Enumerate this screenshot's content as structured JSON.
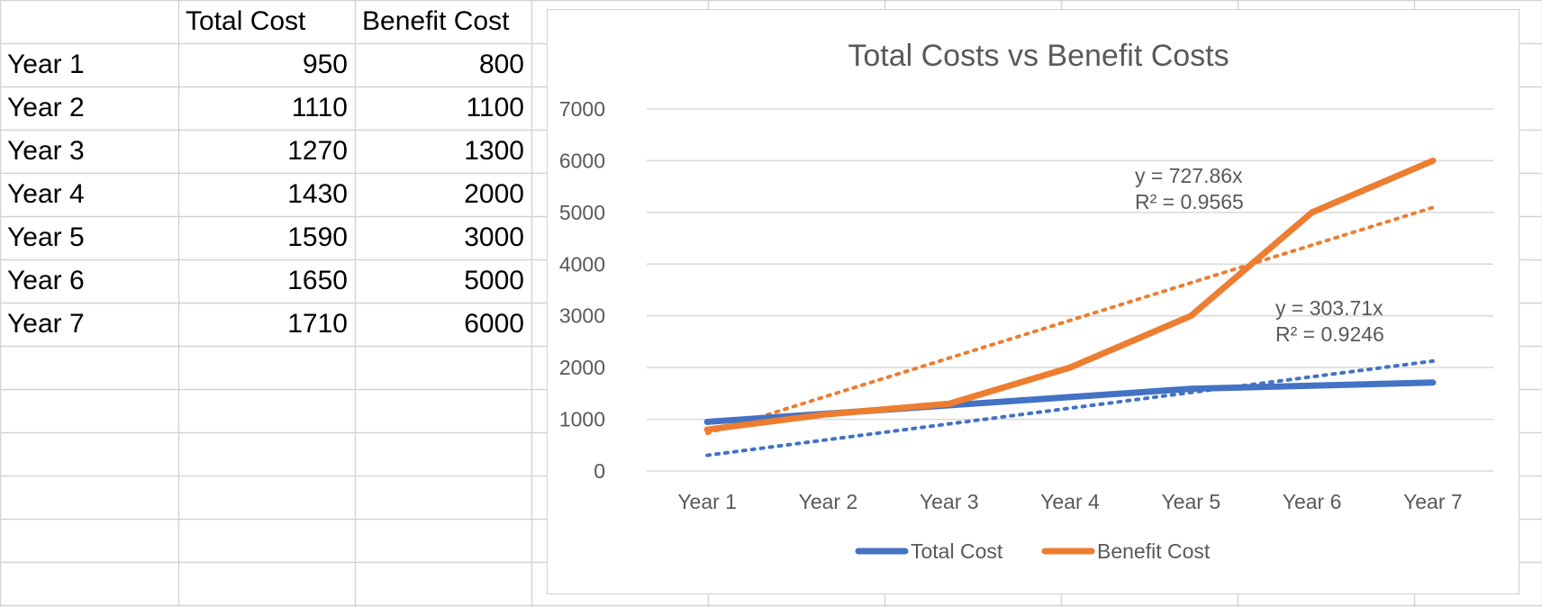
{
  "sheet": {
    "headers": [
      "",
      "Total Cost",
      "Benefit Cost"
    ],
    "rows": [
      {
        "label": "Year 1",
        "total": "950",
        "benefit": "800"
      },
      {
        "label": "Year 2",
        "total": "1110",
        "benefit": "1100"
      },
      {
        "label": "Year 3",
        "total": "1270",
        "benefit": "1300"
      },
      {
        "label": "Year 4",
        "total": "1430",
        "benefit": "2000"
      },
      {
        "label": "Year 5",
        "total": "1590",
        "benefit": "3000"
      },
      {
        "label": "Year 6",
        "total": "1650",
        "benefit": "5000"
      },
      {
        "label": "Year 7",
        "total": "1710",
        "benefit": "6000"
      }
    ]
  },
  "chart_data": {
    "type": "line",
    "title": "Total Costs vs Benefit Costs",
    "xlabel": "",
    "ylabel": "",
    "categories": [
      "Year 1",
      "Year 2",
      "Year 3",
      "Year 4",
      "Year 5",
      "Year 6",
      "Year 7"
    ],
    "ylim": [
      0,
      7000
    ],
    "yticks": [
      0,
      1000,
      2000,
      3000,
      4000,
      5000,
      6000,
      7000
    ],
    "grid": true,
    "legend_position": "bottom",
    "series": [
      {
        "name": "Total Cost",
        "color": "#4472C4",
        "values": [
          950,
          1110,
          1270,
          1430,
          1590,
          1650,
          1710
        ],
        "trendline": {
          "slope": 303.71,
          "equation": "y = 303.71x",
          "r2": "R² = 0.9246"
        }
      },
      {
        "name": "Benefit Cost",
        "color": "#ED7D31",
        "values": [
          800,
          1100,
          1300,
          2000,
          3000,
          5000,
          6000
        ],
        "trendline": {
          "slope": 727.86,
          "equation": "y = 727.86x",
          "r2": "R² = 0.9565"
        }
      }
    ]
  }
}
